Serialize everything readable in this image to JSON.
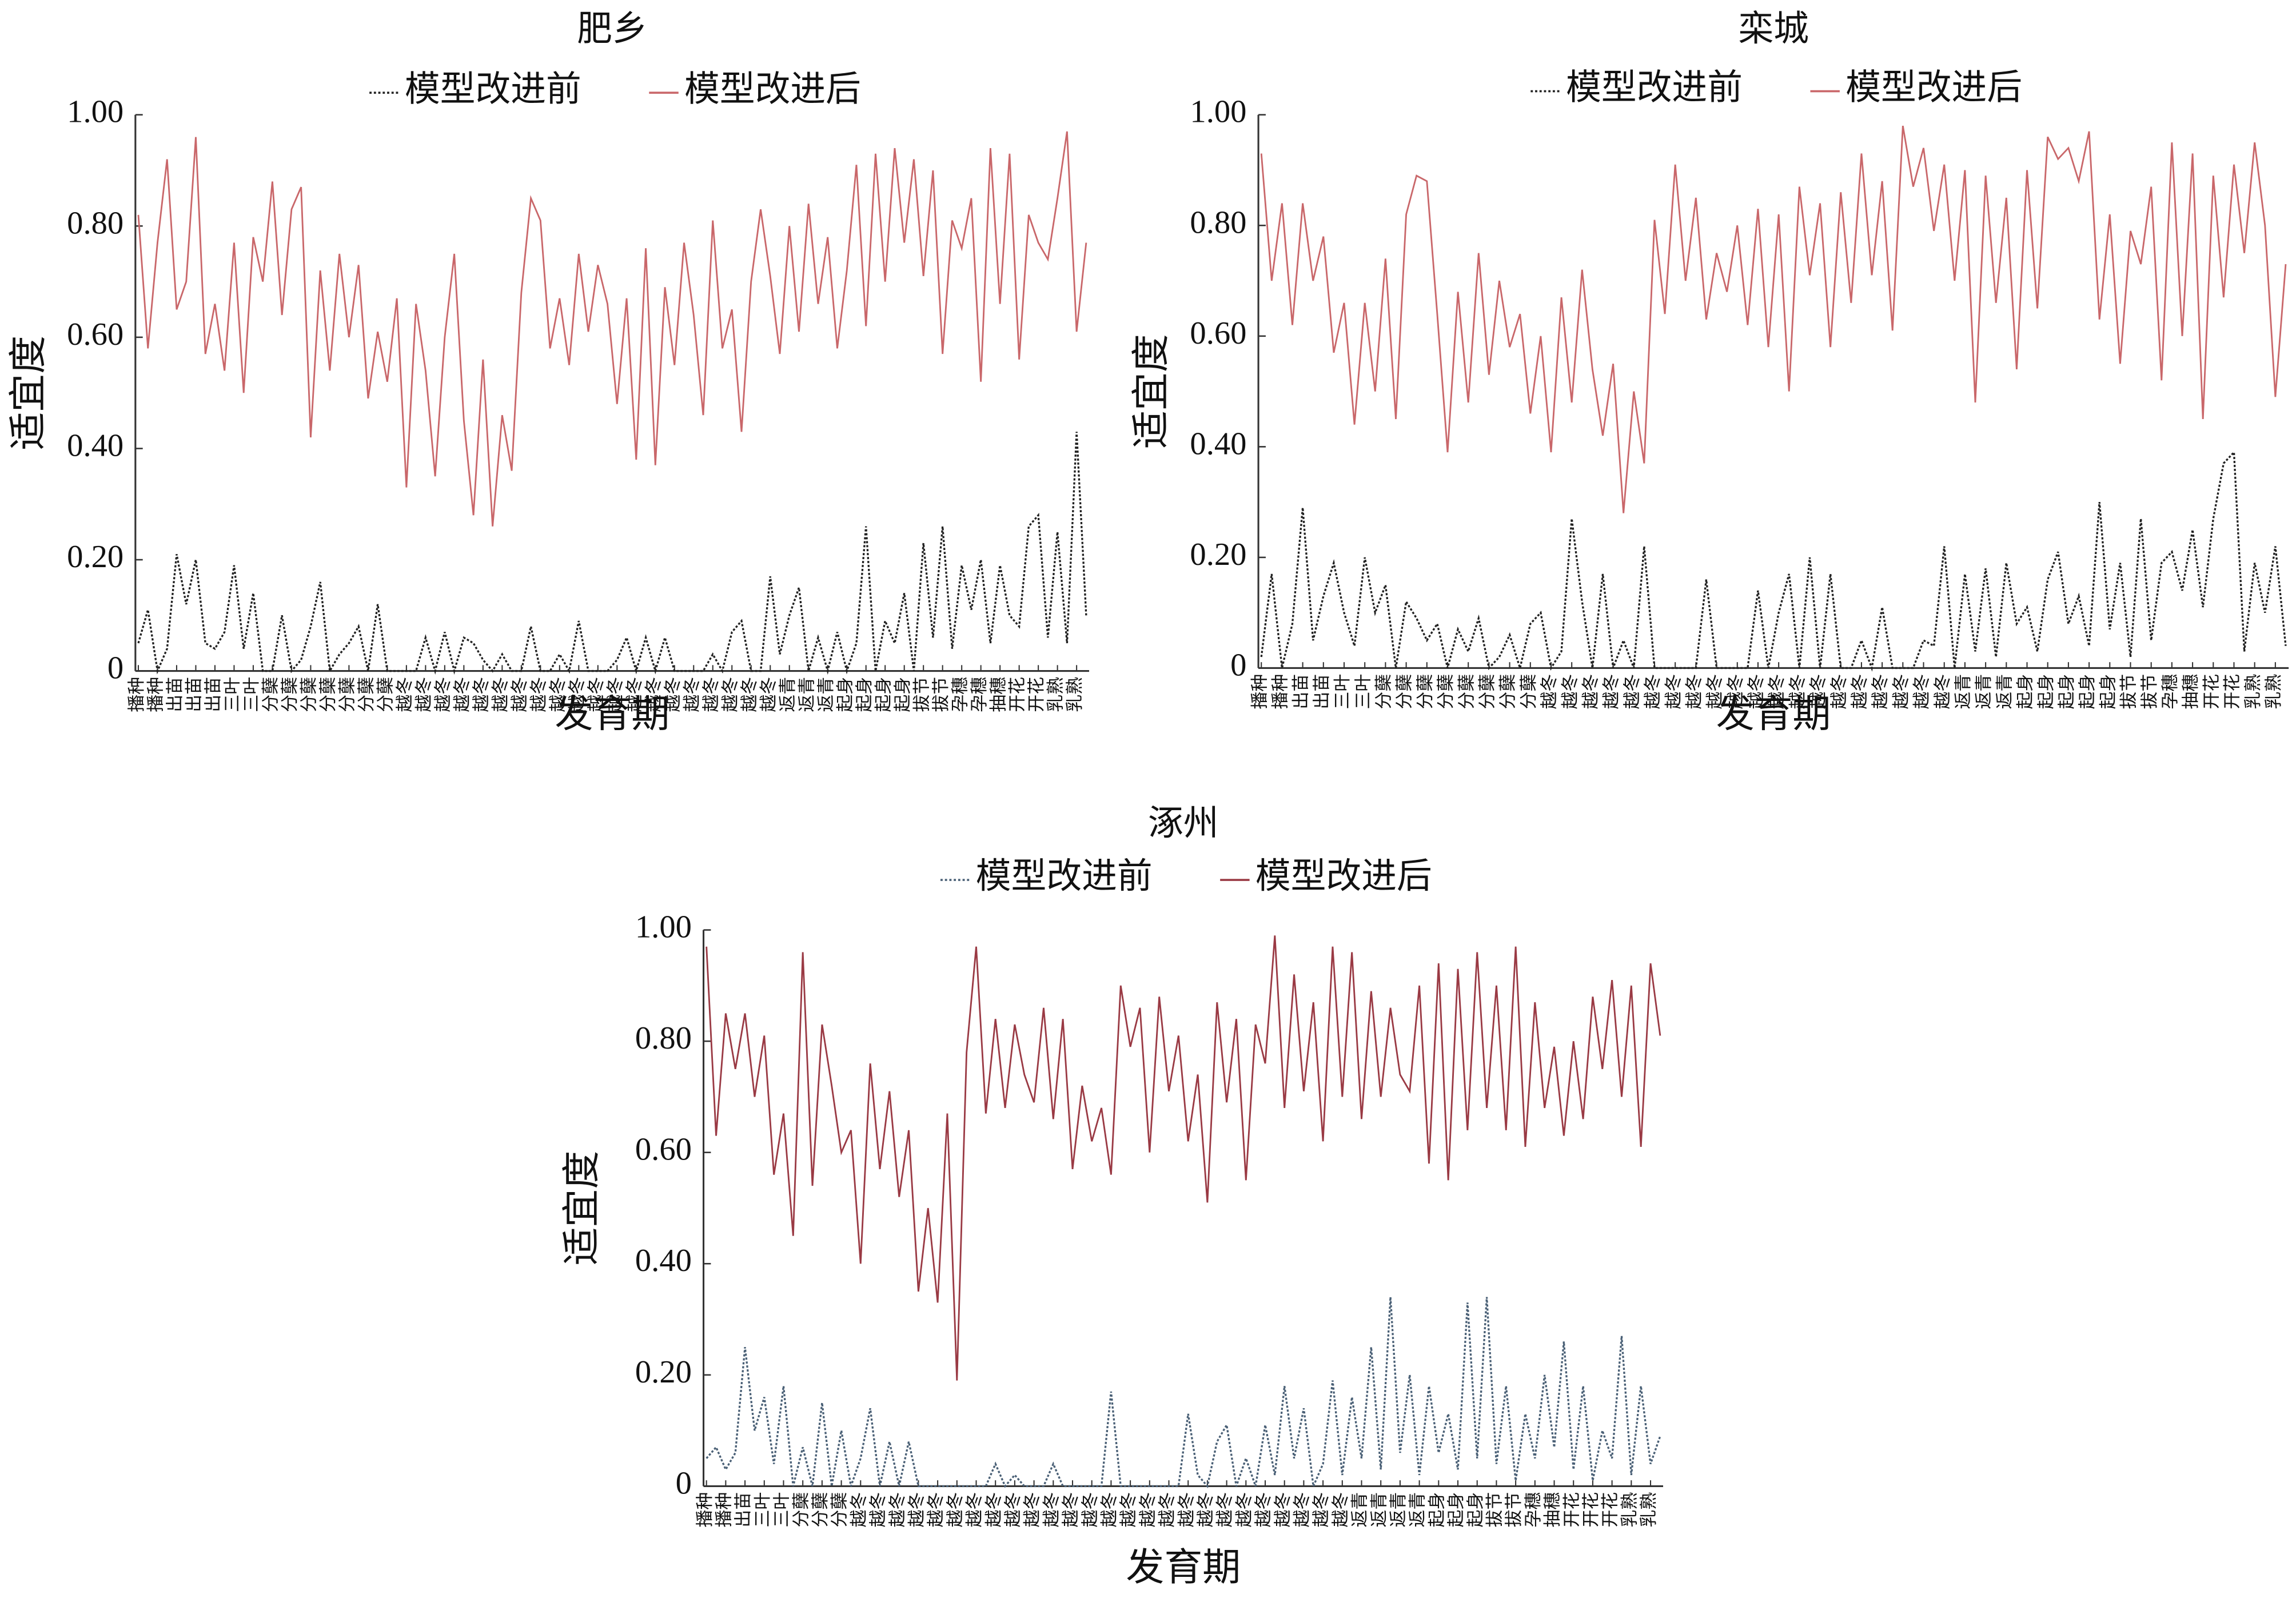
{
  "chart_data": [
    {
      "type": "line",
      "title": "肥乡",
      "xlabel": "发育期",
      "ylabel": "适宜度",
      "categories": [
        "播种",
        null,
        "播种",
        null,
        "出苗",
        null,
        "出苗",
        null,
        "出苗",
        null,
        "三叶",
        null,
        "三叶",
        null,
        "分蘖",
        null,
        "分蘖",
        null,
        "分蘖",
        null,
        "分蘖",
        null,
        "分蘖",
        null,
        "分蘖",
        null,
        "分蘖",
        null,
        "越冬",
        null,
        "越冬",
        null,
        "越冬",
        null,
        "越冬",
        null,
        "越冬",
        null,
        "越冬",
        null,
        "越冬",
        null,
        "越冬",
        null,
        "越冬",
        null,
        "越冬",
        null,
        "越冬",
        null,
        "越冬",
        null,
        "越冬",
        null,
        "越冬",
        null,
        "越冬",
        null,
        "越冬",
        null,
        "越冬",
        null,
        "越冬",
        null,
        "越冬",
        null,
        "越冬",
        null,
        "返青",
        null,
        "返青",
        null,
        "返青",
        null,
        "起身",
        null,
        "起身",
        null,
        "起身",
        null,
        "起身",
        null,
        "拔节",
        null,
        "拔节",
        null,
        "孕穗",
        null,
        "孕穗",
        null,
        "抽穗",
        null,
        "开花",
        null,
        "开花",
        null,
        "乳熟",
        null,
        "乳熟",
        null
      ],
      "series": [
        {
          "name": "模型改进前",
          "color": "#222222",
          "linestyle": "dotted",
          "values": [
            0.05,
            0.11,
            0,
            0.04,
            0.21,
            0.12,
            0.2,
            0.05,
            0.04,
            0.07,
            0.19,
            0.04,
            0.14,
            0,
            0,
            0.1,
            0,
            0.02,
            0.08,
            0.16,
            0,
            0.03,
            0.05,
            0.08,
            0,
            0.12,
            0,
            0,
            0,
            0,
            0.06,
            0,
            0.07,
            0,
            0.06,
            0.05,
            0.02,
            0,
            0.03,
            0,
            0,
            0.08,
            0,
            0,
            0.03,
            0,
            0.09,
            0,
            0,
            0,
            0.02,
            0.06,
            0,
            0.06,
            0,
            0.06,
            0,
            0,
            0,
            0,
            0.03,
            0,
            0.07,
            0.09,
            0,
            0,
            0.17,
            0.03,
            0.1,
            0.15,
            0,
            0.06,
            0,
            0.07,
            0,
            0.05,
            0.26,
            0,
            0.09,
            0.05,
            0.14,
            0,
            0.23,
            0.06,
            0.26,
            0.04,
            0.19,
            0.11,
            0.2,
            0.05,
            0.19,
            0.1,
            0.08,
            0.26,
            0.28,
            0.06,
            0.25,
            0.05,
            0.43,
            0.1
          ]
        },
        {
          "name": "模型改进后",
          "color": "#c9676a",
          "linestyle": "solid",
          "values": [
            0.82,
            0.58,
            0.77,
            0.92,
            0.65,
            0.7,
            0.96,
            0.57,
            0.66,
            0.54,
            0.77,
            0.5,
            0.78,
            0.7,
            0.88,
            0.64,
            0.83,
            0.87,
            0.42,
            0.72,
            0.54,
            0.75,
            0.6,
            0.73,
            0.49,
            0.61,
            0.52,
            0.67,
            0.33,
            0.66,
            0.54,
            0.35,
            0.6,
            0.75,
            0.45,
            0.28,
            0.56,
            0.26,
            0.46,
            0.36,
            0.68,
            0.85,
            0.81,
            0.58,
            0.67,
            0.55,
            0.75,
            0.61,
            0.73,
            0.66,
            0.48,
            0.67,
            0.38,
            0.76,
            0.37,
            0.69,
            0.55,
            0.77,
            0.64,
            0.46,
            0.81,
            0.58,
            0.65,
            0.43,
            0.7,
            0.83,
            0.71,
            0.57,
            0.8,
            0.61,
            0.84,
            0.66,
            0.78,
            0.58,
            0.72,
            0.91,
            0.62,
            0.93,
            0.7,
            0.94,
            0.77,
            0.92,
            0.71,
            0.9,
            0.57,
            0.81,
            0.76,
            0.85,
            0.52,
            0.94,
            0.66,
            0.93,
            0.56,
            0.82,
            0.77,
            0.74,
            0.85,
            0.97,
            0.61,
            0.77
          ]
        }
      ],
      "ylim": [
        0,
        1
      ],
      "yticks": [
        0,
        {
          "value": 0.2,
          "label": "0.20"
        },
        {
          "value": 0.4,
          "label": "0.40"
        },
        {
          "value": 0.6,
          "label": "0.60"
        },
        {
          "value": 0.8,
          "label": "0.80"
        },
        {
          "value": 1,
          "label": "1.00"
        }
      ]
    },
    {
      "type": "line",
      "title": "栾城",
      "xlabel": "发育期",
      "ylabel": "适宜度",
      "categories": [
        "播种",
        null,
        "播种",
        null,
        "出苗",
        null,
        "出苗",
        null,
        "三叶",
        null,
        "三叶",
        null,
        "分蘖",
        null,
        "分蘖",
        null,
        "分蘖",
        null,
        "分蘖",
        null,
        "分蘖",
        null,
        "分蘖",
        null,
        "分蘖",
        null,
        "分蘖",
        null,
        "越冬",
        null,
        "越冬",
        null,
        "越冬",
        null,
        "越冬",
        null,
        "越冬",
        null,
        "越冬",
        null,
        "越冬",
        null,
        "越冬",
        null,
        "越冬",
        null,
        "越冬",
        null,
        "越冬",
        null,
        "越冬",
        null,
        "越冬",
        null,
        "越冬",
        null,
        "越冬",
        null,
        "越冬",
        null,
        "越冬",
        null,
        "越冬",
        null,
        "越冬",
        null,
        "越冬",
        null,
        "返青",
        null,
        "返青",
        null,
        "返青",
        null,
        "起身",
        null,
        "起身",
        null,
        "起身",
        null,
        "起身",
        null,
        "起身",
        null,
        "拔节",
        null,
        "拔节",
        null,
        "孕穗",
        null,
        "抽穗",
        null,
        "开花",
        null,
        "开花",
        null,
        "乳熟",
        null,
        "乳熟",
        null
      ],
      "series": [
        {
          "name": "模型改进前",
          "color": "#222222",
          "linestyle": "dotted",
          "values": [
            0.02,
            0.17,
            0,
            0.08,
            0.29,
            0.05,
            0.13,
            0.19,
            0.1,
            0.04,
            0.2,
            0.1,
            0.15,
            0,
            0.12,
            0.09,
            0.05,
            0.08,
            0,
            0.07,
            0.03,
            0.09,
            0,
            0.02,
            0.06,
            0,
            0.08,
            0.1,
            0,
            0.03,
            0.27,
            0.12,
            0,
            0.17,
            0,
            0.05,
            0,
            0.22,
            0,
            0,
            0,
            0,
            0,
            0.16,
            0,
            0,
            0,
            0,
            0.14,
            0,
            0.1,
            0.17,
            0,
            0.2,
            0,
            0.17,
            0,
            0,
            0.05,
            0,
            0.11,
            0,
            0,
            0,
            0.05,
            0.04,
            0.22,
            0,
            0.17,
            0.03,
            0.18,
            0.02,
            0.19,
            0.08,
            0.11,
            0.03,
            0.16,
            0.21,
            0.08,
            0.13,
            0.04,
            0.3,
            0.07,
            0.19,
            0.02,
            0.27,
            0.05,
            0.19,
            0.21,
            0.14,
            0.25,
            0.11,
            0.27,
            0.37,
            0.39,
            0.03,
            0.19,
            0.1,
            0.22,
            0.04
          ]
        },
        {
          "name": "模型改进后",
          "color": "#c9676a",
          "linestyle": "solid",
          "values": [
            0.93,
            0.7,
            0.84,
            0.62,
            0.84,
            0.7,
            0.78,
            0.57,
            0.66,
            0.44,
            0.66,
            0.5,
            0.74,
            0.45,
            0.82,
            0.89,
            0.88,
            0.64,
            0.39,
            0.68,
            0.48,
            0.75,
            0.53,
            0.7,
            0.58,
            0.64,
            0.46,
            0.6,
            0.39,
            0.67,
            0.48,
            0.72,
            0.54,
            0.42,
            0.55,
            0.28,
            0.5,
            0.37,
            0.81,
            0.64,
            0.91,
            0.7,
            0.85,
            0.63,
            0.75,
            0.68,
            0.8,
            0.62,
            0.83,
            0.58,
            0.82,
            0.5,
            0.87,
            0.71,
            0.84,
            0.58,
            0.86,
            0.66,
            0.93,
            0.71,
            0.88,
            0.61,
            0.98,
            0.87,
            0.94,
            0.79,
            0.91,
            0.7,
            0.9,
            0.48,
            0.89,
            0.66,
            0.85,
            0.54,
            0.9,
            0.65,
            0.96,
            0.92,
            0.94,
            0.88,
            0.97,
            0.63,
            0.82,
            0.55,
            0.79,
            0.73,
            0.87,
            0.52,
            0.95,
            0.6,
            0.93,
            0.45,
            0.89,
            0.67,
            0.91,
            0.75,
            0.95,
            0.8,
            0.49,
            0.73
          ]
        }
      ],
      "ylim": [
        0,
        1
      ],
      "yticks": [
        0,
        {
          "value": 0.2,
          "label": "0.20"
        },
        {
          "value": 0.4,
          "label": "0.40"
        },
        {
          "value": 0.6,
          "label": "0.60"
        },
        {
          "value": 0.8,
          "label": "0.80"
        },
        {
          "value": 1,
          "label": "1.00"
        }
      ]
    },
    {
      "type": "line",
      "title": "涿州",
      "xlabel": "发育期",
      "ylabel": "适宜度",
      "categories": [
        "播种",
        null,
        "播种",
        null,
        "出苗",
        null,
        "三叶",
        null,
        "三叶",
        null,
        "分蘖",
        null,
        "分蘖",
        null,
        "分蘖",
        null,
        "越冬",
        null,
        "越冬",
        null,
        "越冬",
        null,
        "越冬",
        null,
        "越冬",
        null,
        "越冬",
        null,
        "越冬",
        null,
        "越冬",
        null,
        "越冬",
        null,
        "越冬",
        null,
        "越冬",
        null,
        "越冬",
        null,
        "越冬",
        null,
        "越冬",
        null,
        "越冬",
        null,
        "越冬",
        null,
        "越冬",
        null,
        "越冬",
        null,
        "越冬",
        null,
        "越冬",
        null,
        "越冬",
        null,
        "越冬",
        null,
        "越冬",
        null,
        "越冬",
        null,
        "越冬",
        null,
        "越冬",
        null,
        "返青",
        null,
        "返青",
        null,
        "返青",
        null,
        "返青",
        null,
        "起身",
        null,
        "起身",
        null,
        "起身",
        null,
        "拔节",
        null,
        "拔节",
        null,
        "孕穗",
        null,
        "抽穗",
        null,
        "开花",
        null,
        "开花",
        null,
        "开花",
        null,
        "乳熟",
        null,
        "乳熟",
        null
      ],
      "series": [
        {
          "name": "模型改进前",
          "color": "#4a6076",
          "linestyle": "dotted",
          "values": [
            0.05,
            0.07,
            0.03,
            0.06,
            0.25,
            0.1,
            0.16,
            0.04,
            0.18,
            0,
            0.07,
            0,
            0.15,
            0,
            0.1,
            0,
            0.05,
            0.14,
            0,
            0.08,
            0,
            0.08,
            0,
            0,
            0,
            0,
            0,
            0,
            0,
            0,
            0.04,
            0,
            0.02,
            0,
            0,
            0,
            0.04,
            0,
            0,
            0,
            0,
            0,
            0.17,
            0,
            0,
            0,
            0,
            0,
            0,
            0,
            0.13,
            0.02,
            0,
            0.08,
            0.11,
            0,
            0.05,
            0,
            0.11,
            0.02,
            0.18,
            0.05,
            0.14,
            0,
            0.04,
            0.19,
            0.02,
            0.16,
            0.05,
            0.25,
            0.03,
            0.34,
            0.06,
            0.2,
            0.02,
            0.18,
            0.06,
            0.13,
            0.03,
            0.33,
            0.05,
            0.34,
            0.04,
            0.18,
            0.01,
            0.13,
            0.05,
            0.2,
            0.07,
            0.26,
            0.03,
            0.18,
            0.01,
            0.1,
            0.05,
            0.27,
            0.02,
            0.18,
            0.04,
            0.09
          ]
        },
        {
          "name": "模型改进后",
          "color": "#9a3a44",
          "linestyle": "solid",
          "values": [
            0.97,
            0.63,
            0.85,
            0.75,
            0.85,
            0.7,
            0.81,
            0.56,
            0.67,
            0.45,
            0.96,
            0.54,
            0.83,
            0.72,
            0.6,
            0.64,
            0.4,
            0.76,
            0.57,
            0.71,
            0.52,
            0.64,
            0.35,
            0.5,
            0.33,
            0.67,
            0.19,
            0.78,
            0.97,
            0.67,
            0.84,
            0.68,
            0.83,
            0.74,
            0.69,
            0.86,
            0.66,
            0.84,
            0.57,
            0.72,
            0.62,
            0.68,
            0.56,
            0.9,
            0.79,
            0.86,
            0.6,
            0.88,
            0.71,
            0.81,
            0.62,
            0.74,
            0.51,
            0.87,
            0.69,
            0.84,
            0.55,
            0.83,
            0.76,
            0.99,
            0.68,
            0.92,
            0.71,
            0.87,
            0.62,
            0.97,
            0.7,
            0.96,
            0.66,
            0.89,
            0.7,
            0.86,
            0.74,
            0.71,
            0.9,
            0.58,
            0.94,
            0.55,
            0.93,
            0.64,
            0.96,
            0.68,
            0.9,
            0.64,
            0.97,
            0.61,
            0.87,
            0.68,
            0.79,
            0.63,
            0.8,
            0.66,
            0.88,
            0.75,
            0.91,
            0.7,
            0.9,
            0.61,
            0.94,
            0.81
          ]
        }
      ],
      "ylim": [
        0,
        1
      ],
      "yticks": [
        0,
        {
          "value": 0.2,
          "label": "0.20"
        },
        {
          "value": 0.4,
          "label": "0.40"
        },
        {
          "value": 0.6,
          "label": "0.60"
        },
        {
          "value": 0.8,
          "label": "0.80"
        },
        {
          "value": 1,
          "label": "1.00"
        }
      ]
    }
  ]
}
